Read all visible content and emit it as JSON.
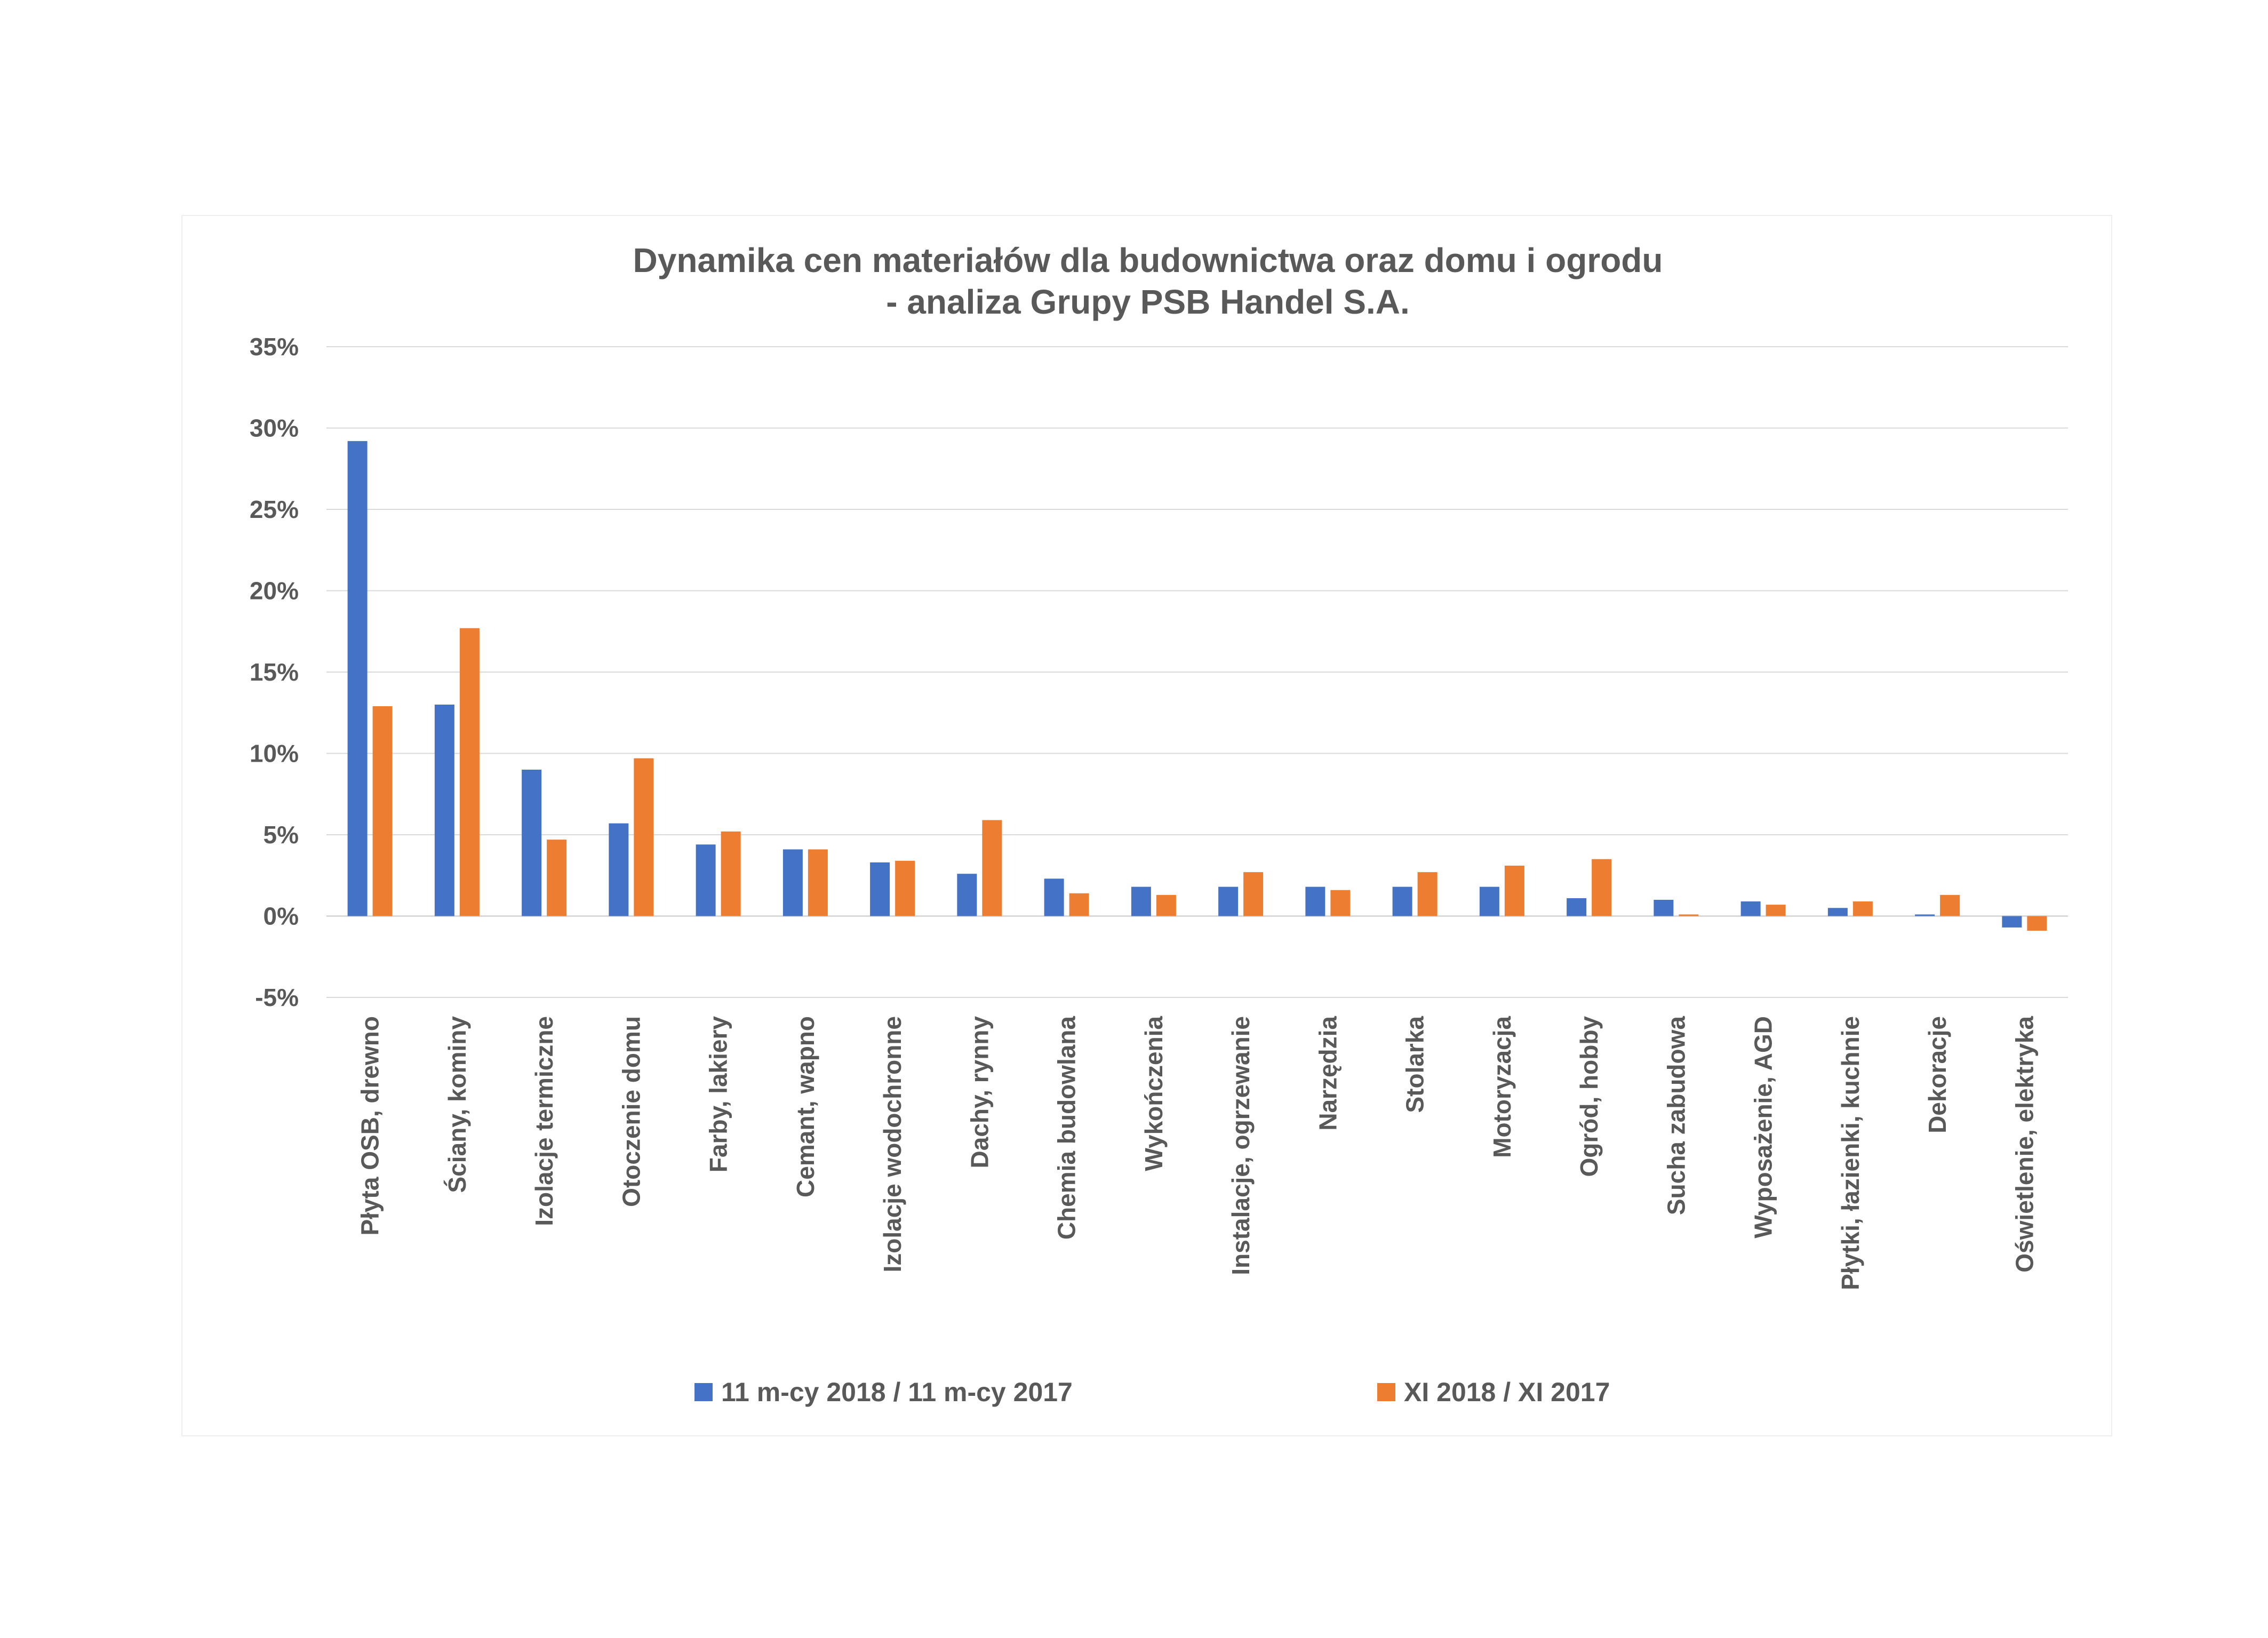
{
  "chart_data": {
    "type": "bar",
    "title": "Dynamika cen materiałów dla budownictwa oraz domu i ogrodu",
    "subtitle": "- analiza Grupy PSB Handel S.A.",
    "xlabel": "",
    "ylabel": "",
    "ylim": [
      -5,
      35
    ],
    "ytick_step": 5,
    "ytick_suffix": "%",
    "grid": true,
    "legend_position": "bottom",
    "categories": [
      "Płyta OSB, drewno",
      "Ściany, kominy",
      "Izolacje termiczne",
      "Otoczenie domu",
      "Farby, lakiery",
      "Cemant, wapno",
      "Izolacje wodochronne",
      "Dachy, rynny",
      "Chemia budowlana",
      "Wykończenia",
      "Instalacje, ogrzewanie",
      "Narzędzia",
      "Stolarka",
      "Motoryzacja",
      "Ogród, hobby",
      "Sucha zabudowa",
      "Wyposażenie, AGD",
      "Płytki, łazienki, kuchnie",
      "Dekoracje",
      "Oświetlenie, elektryka"
    ],
    "series": [
      {
        "name": "11 m-cy 2018 / 11 m-cy 2017",
        "color": "#4472c4",
        "values": [
          29.2,
          13.0,
          9.0,
          5.7,
          4.4,
          4.1,
          3.3,
          2.6,
          2.3,
          1.8,
          1.8,
          1.8,
          1.8,
          1.8,
          1.1,
          1.0,
          0.9,
          0.5,
          0.1,
          -0.7
        ]
      },
      {
        "name": "XI 2018 / XI 2017",
        "color": "#ed7d31",
        "values": [
          12.9,
          17.7,
          4.7,
          9.7,
          5.2,
          4.1,
          3.4,
          5.9,
          1.4,
          1.3,
          2.7,
          1.6,
          2.7,
          3.1,
          3.5,
          0.1,
          0.7,
          0.9,
          1.3,
          -0.9
        ]
      }
    ]
  }
}
